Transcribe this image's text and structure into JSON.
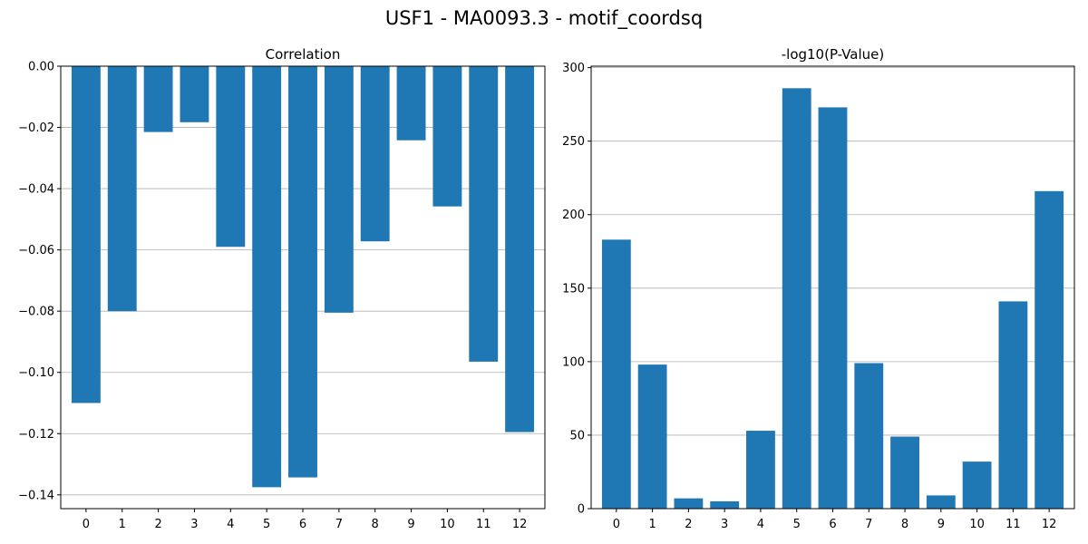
{
  "figure": {
    "title": "USF1 - MA0093.3 - motif_coordsq"
  },
  "colors": {
    "bar": "#1f77b4",
    "grid": "#b0b0b0",
    "axis": "#000000"
  },
  "chart_data": [
    {
      "type": "bar",
      "title": "Correlation",
      "xlabel": "",
      "ylabel": "",
      "grid": "horizontal",
      "categories": [
        "0",
        "1",
        "2",
        "3",
        "4",
        "5",
        "6",
        "7",
        "8",
        "9",
        "10",
        "11",
        "12"
      ],
      "values": [
        -0.11,
        -0.08,
        -0.0215,
        -0.0183,
        -0.059,
        -0.1375,
        -0.1343,
        -0.0805,
        -0.0572,
        -0.0242,
        -0.0458,
        -0.0965,
        -0.1195
      ],
      "ylim": [
        -0.1445,
        0.0
      ],
      "yticks": [
        0.0,
        -0.02,
        -0.04,
        -0.06,
        -0.08,
        -0.1,
        -0.12,
        -0.14
      ],
      "ytick_labels": [
        "0.00",
        "−0.02",
        "−0.04",
        "−0.06",
        "−0.08",
        "−0.10",
        "−0.12",
        "−0.14"
      ]
    },
    {
      "type": "bar",
      "title": "-log10(P-Value)",
      "xlabel": "",
      "ylabel": "",
      "grid": "horizontal",
      "categories": [
        "0",
        "1",
        "2",
        "3",
        "4",
        "5",
        "6",
        "7",
        "8",
        "9",
        "10",
        "11",
        "12"
      ],
      "values": [
        183,
        98,
        7,
        5,
        53,
        286,
        273,
        99,
        49,
        9,
        32,
        141,
        216
      ],
      "ylim": [
        0,
        301
      ],
      "yticks": [
        0,
        50,
        100,
        150,
        200,
        250,
        300
      ],
      "ytick_labels": [
        "0",
        "50",
        "100",
        "150",
        "200",
        "250",
        "300"
      ]
    }
  ]
}
